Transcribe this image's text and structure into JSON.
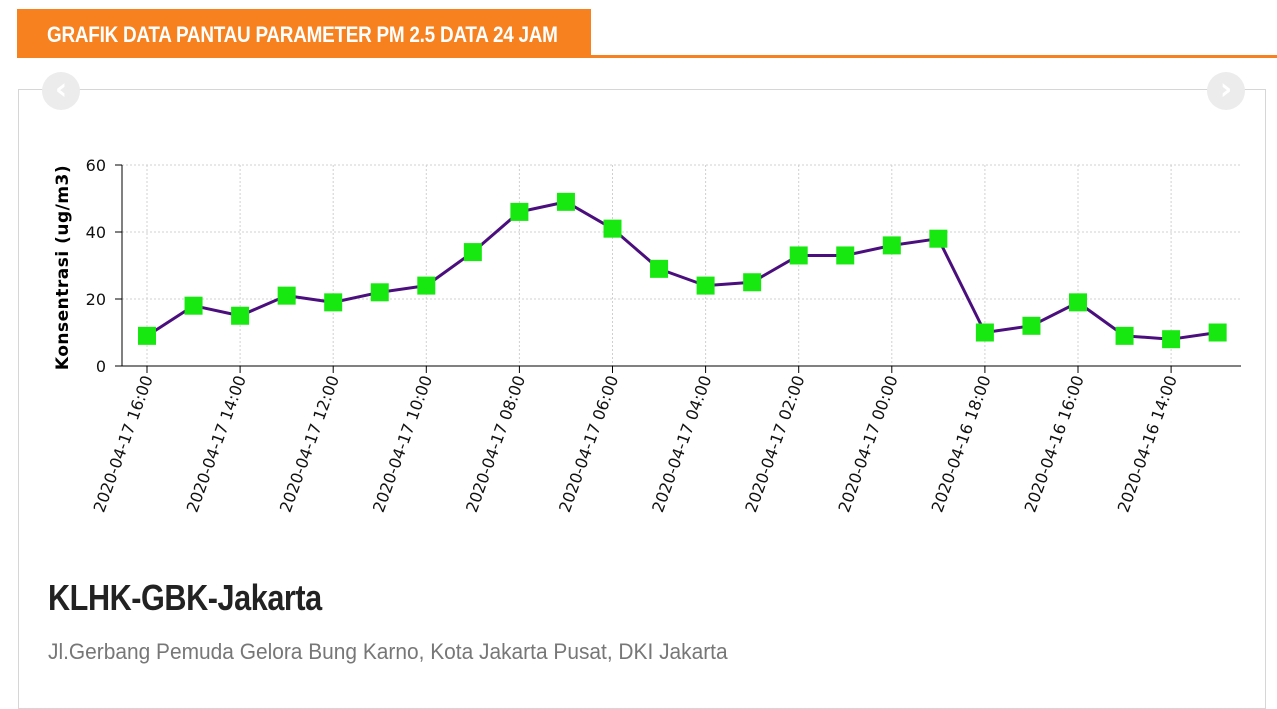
{
  "header": {
    "title": "GRAFIK DATA PANTAU PARAMETER PM 2.5 DATA 24 JAM"
  },
  "navigation": {
    "prev_icon": "chevron-left-icon",
    "next_icon": "chevron-right-icon"
  },
  "colors": {
    "accent": "#f7801f",
    "line": "#4b0f7d",
    "marker": "#17e80f",
    "grid": "#d0d0d0"
  },
  "chart_data": {
    "type": "line",
    "title": "",
    "xlabel": "",
    "ylabel": "Konsentrasi (ug/m3)",
    "ylim": [
      0,
      60
    ],
    "yticks": [
      0,
      20,
      40,
      60
    ],
    "x": [
      "2020-04-17 16:00",
      "2020-04-17 15:00",
      "2020-04-17 14:00",
      "2020-04-17 13:00",
      "2020-04-17 12:00",
      "2020-04-17 11:00",
      "2020-04-17 10:00",
      "2020-04-17 09:00",
      "2020-04-17 08:00",
      "2020-04-17 07:00",
      "2020-04-17 06:00",
      "2020-04-17 05:00",
      "2020-04-17 04:00",
      "2020-04-17 03:00",
      "2020-04-17 02:00",
      "2020-04-17 01:00",
      "2020-04-17 00:00",
      "2020-04-16 19:00",
      "2020-04-16 18:00",
      "2020-04-16 17:00",
      "2020-04-16 16:00",
      "2020-04-16 15:00",
      "2020-04-16 14:00",
      "2020-04-16 13:00"
    ],
    "x_tick_labels": [
      "2020-04-17 16:00",
      "2020-04-17 14:00",
      "2020-04-17 12:00",
      "2020-04-17 10:00",
      "2020-04-17 08:00",
      "2020-04-17 06:00",
      "2020-04-17 04:00",
      "2020-04-17 02:00",
      "2020-04-17 00:00",
      "2020-04-16 18:00",
      "2020-04-16 16:00",
      "2020-04-16 14:00"
    ],
    "series": [
      {
        "values": [
          9,
          18,
          15,
          21,
          19,
          22,
          24,
          34,
          46,
          49,
          41,
          29,
          24,
          25,
          33,
          33,
          36,
          38,
          10,
          12,
          19,
          9,
          8,
          10
        ]
      }
    ],
    "grid": true,
    "marker": "square"
  },
  "station": {
    "name": "KLHK-GBK-Jakarta",
    "address": "Jl.Gerbang Pemuda Gelora Bung Karno, Kota Jakarta Pusat, DKI Jakarta"
  }
}
